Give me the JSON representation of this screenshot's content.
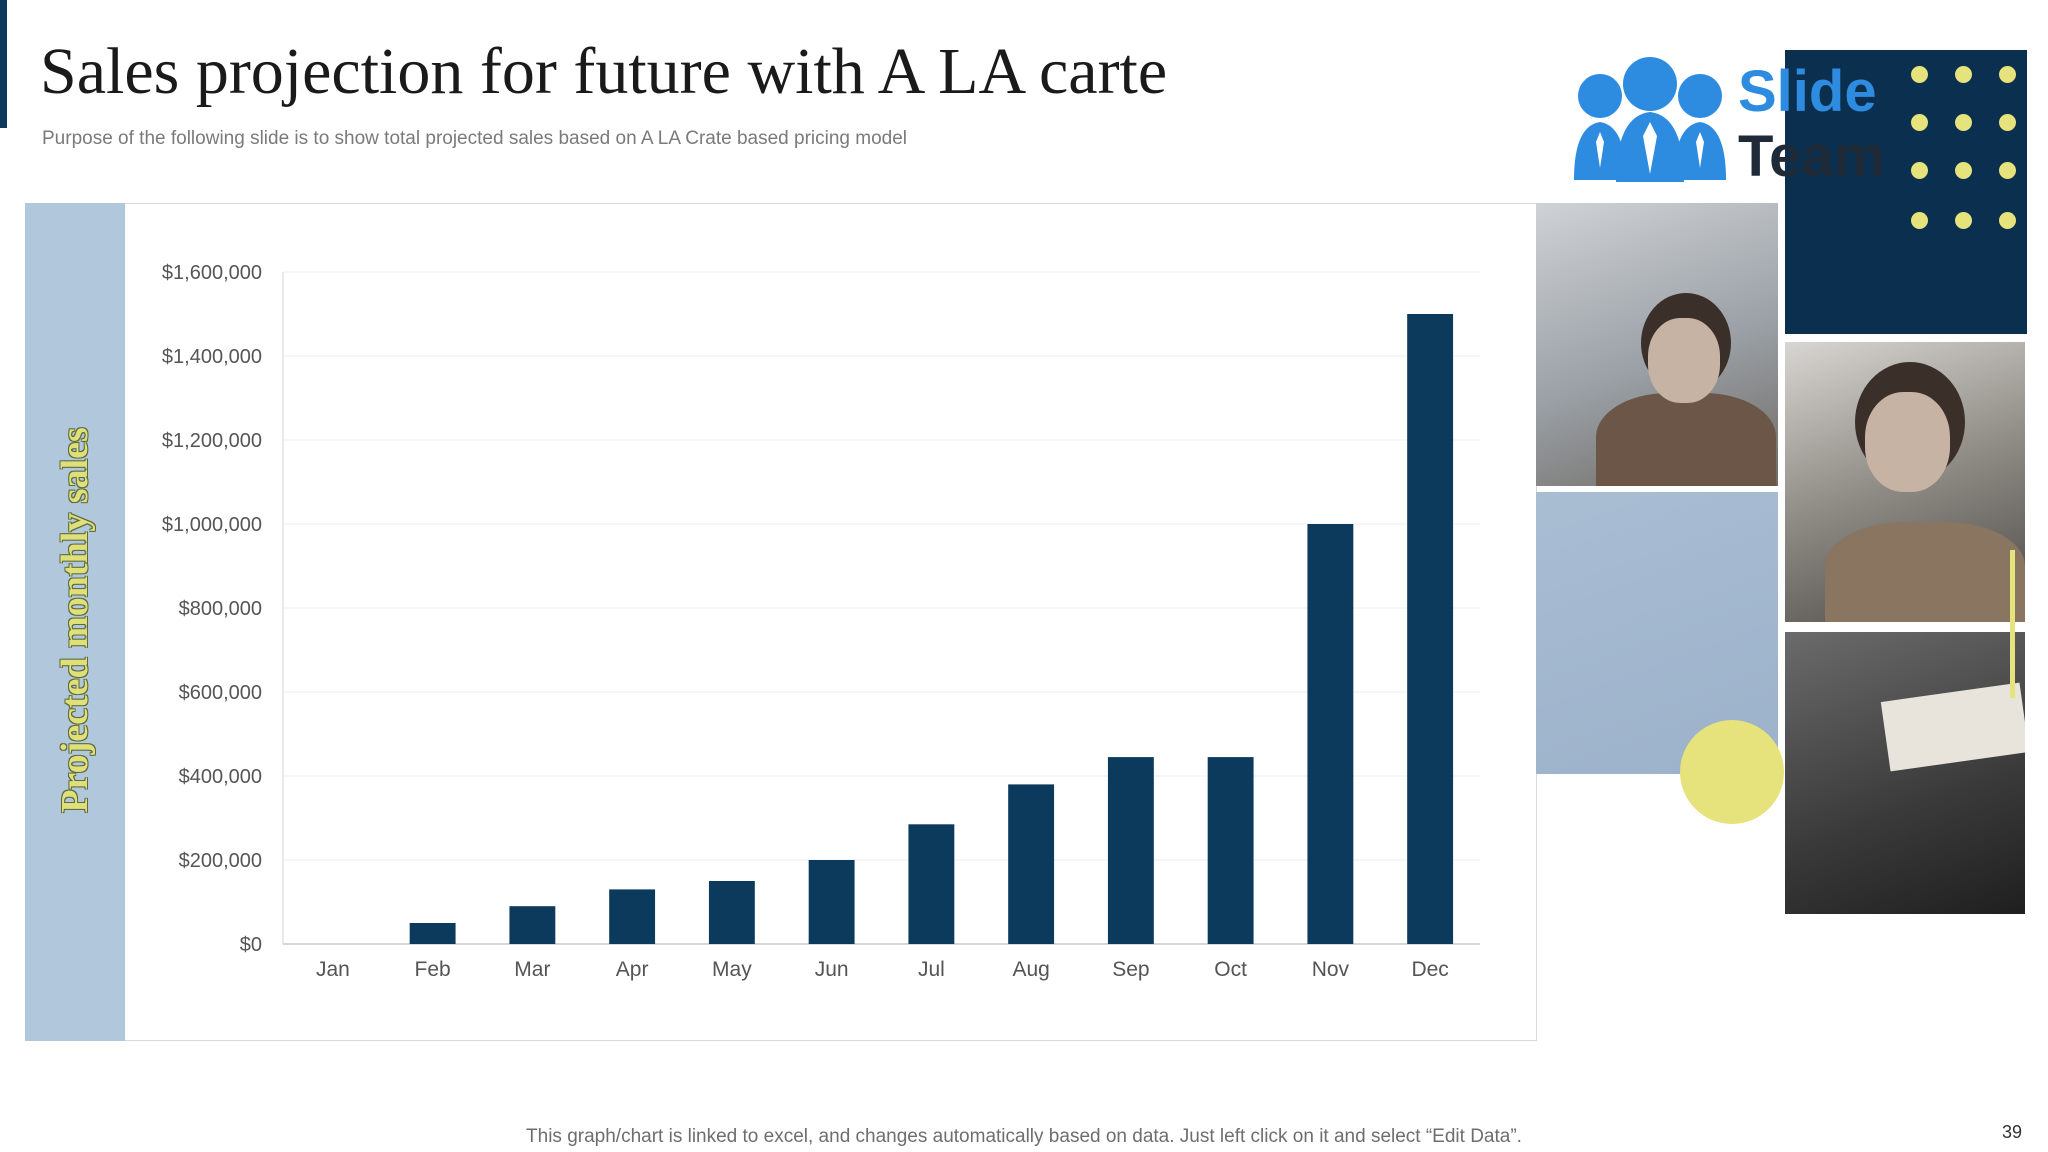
{
  "slide": {
    "title": "Sales projection for future with A LA carte",
    "subtitle": "Purpose of the following slide is to show total projected sales based on A LA Crate based pricing model",
    "footnote": "This graph/chart is linked to excel,  and changes automatically based on data. Just left click on it and select “Edit Data”.",
    "page_number": "39"
  },
  "logo": {
    "line1": "Slide",
    "line2": "Team"
  },
  "colors": {
    "bar": "#0b3a5c",
    "accent_yellow": "#e6e27c",
    "navy": "#0b2f4e",
    "band": "#b0c7dc"
  },
  "chart_data": {
    "type": "bar",
    "title": "",
    "xlabel": "",
    "ylabel": "Projected monthly sales",
    "categories": [
      "Jan",
      "Feb",
      "Mar",
      "Apr",
      "May",
      "Jun",
      "Jul",
      "Aug",
      "Sep",
      "Oct",
      "Nov",
      "Dec"
    ],
    "values": [
      0,
      50000,
      90000,
      130000,
      150000,
      200000,
      285000,
      380000,
      445000,
      445000,
      1000000,
      1500000
    ],
    "ylim": [
      0,
      1600000
    ],
    "yticks": [
      0,
      200000,
      400000,
      600000,
      800000,
      1000000,
      1200000,
      1400000,
      1600000
    ],
    "ytick_labels": [
      "$0",
      "$200,000",
      "$400,000",
      "$600,000",
      "$800,000",
      "$1,000,000",
      "$1,200,000",
      "$1,400,000",
      "$1,600,000"
    ],
    "grid": true,
    "legend": "none"
  }
}
